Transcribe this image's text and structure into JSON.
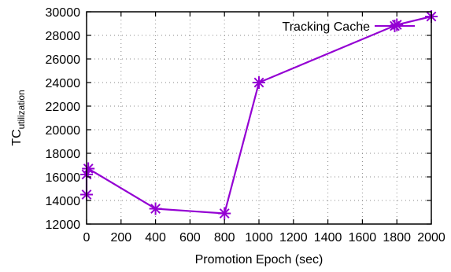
{
  "chart_data": {
    "type": "line",
    "xlabel": "Promotion Epoch (sec)",
    "ylabel_main": "TC",
    "ylabel_sub": "utilization",
    "xlim": [
      0,
      2000
    ],
    "ylim": [
      12000,
      30000
    ],
    "xticks": [
      0,
      200,
      400,
      600,
      800,
      1000,
      1200,
      1400,
      1600,
      1800,
      2000
    ],
    "yticks": [
      12000,
      14000,
      16000,
      18000,
      20000,
      22000,
      24000,
      26000,
      28000,
      30000
    ],
    "grid": true,
    "legend_position": "top-right",
    "series": [
      {
        "name": "Tracking Cache",
        "color": "#9400d3",
        "marker": "asterisk",
        "x": [
          0,
          0,
          10,
          400,
          800,
          1000,
          1800,
          2000
        ],
        "y": [
          14500,
          16200,
          16700,
          13300,
          12900,
          24000,
          28900,
          29600
        ]
      }
    ]
  }
}
